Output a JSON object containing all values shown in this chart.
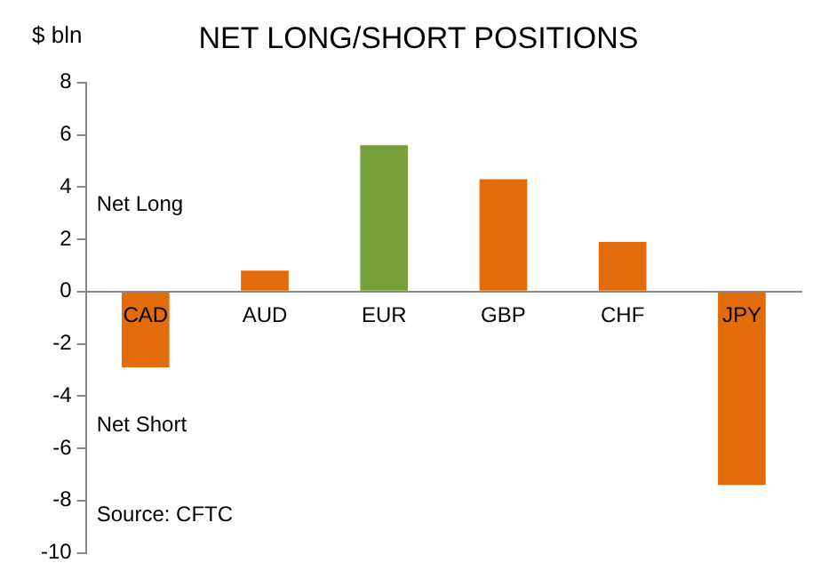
{
  "chart_data": {
    "type": "bar",
    "title": "NET LONG/SHORT POSITIONS",
    "ylabel": "$ bln",
    "categories": [
      "CAD",
      "AUD",
      "EUR",
      "GBP",
      "CHF",
      "JPY"
    ],
    "values": [
      -2.9,
      0.8,
      5.6,
      4.3,
      1.9,
      -7.4
    ],
    "colors": [
      "#e36c0a",
      "#e36c0a",
      "#77a03a",
      "#e36c0a",
      "#e36c0a",
      "#e36c0a"
    ],
    "ylim": [
      -10,
      8
    ],
    "yticks": [
      -10,
      -8,
      -6,
      -4,
      -2,
      0,
      2,
      4,
      6,
      8
    ],
    "grid": false,
    "legend": false,
    "annotations": [
      "Net Long",
      "Net Short",
      "Source: CFTC"
    ]
  }
}
